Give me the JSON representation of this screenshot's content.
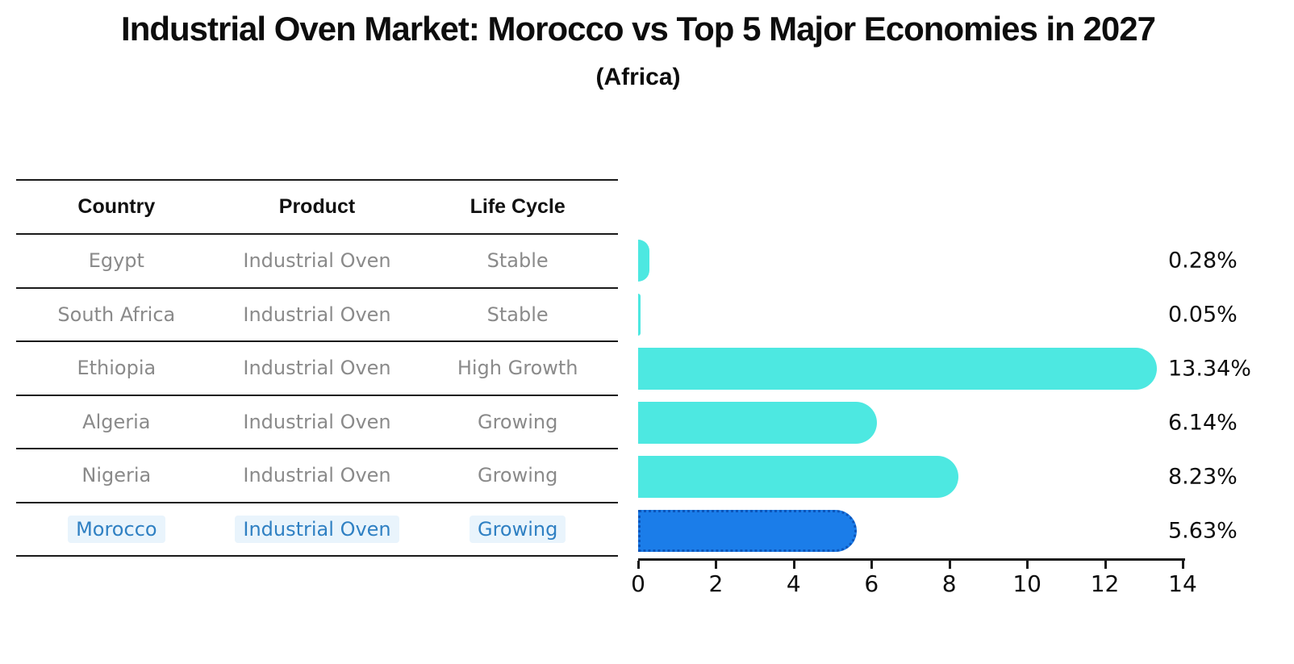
{
  "header": {
    "title": "Industrial Oven Market: Morocco vs Top 5 Major Economies in 2027",
    "subtitle": "(Africa)"
  },
  "table": {
    "headers": [
      "Country",
      "Product",
      "Life Cycle"
    ],
    "rows": [
      {
        "country": "Egypt",
        "product": "Industrial Oven",
        "life_cycle": "Stable",
        "highlight": false
      },
      {
        "country": "South Africa",
        "product": "Industrial Oven",
        "life_cycle": "Stable",
        "highlight": false
      },
      {
        "country": "Ethiopia",
        "product": "Industrial Oven",
        "life_cycle": "High Growth",
        "highlight": false
      },
      {
        "country": "Algeria",
        "product": "Industrial Oven",
        "life_cycle": "Growing",
        "highlight": false
      },
      {
        "country": "Nigeria",
        "product": "Industrial Oven",
        "life_cycle": "Growing",
        "highlight": false
      },
      {
        "country": "Morocco",
        "product": "Industrial Oven",
        "life_cycle": "Growing",
        "highlight": true
      }
    ]
  },
  "chart_data": {
    "type": "bar",
    "orientation": "horizontal",
    "title": "Industrial Oven Market: Morocco vs Top 5 Major Economies in 2027",
    "subtitle": "(Africa)",
    "categories": [
      "Egypt",
      "South Africa",
      "Ethiopia",
      "Algeria",
      "Nigeria",
      "Morocco"
    ],
    "values": [
      0.28,
      0.05,
      13.34,
      6.14,
      8.23,
      5.63
    ],
    "value_labels": [
      "0.28%",
      "0.05%",
      "13.34%",
      "6.14%",
      "8.23%",
      "5.63%"
    ],
    "xlim": [
      0,
      14
    ],
    "x_ticks": [
      0,
      2,
      4,
      6,
      8,
      10,
      12,
      14
    ],
    "highlight_index": 5,
    "grid": false,
    "legend": "none"
  },
  "colors": {
    "bar_color": "#4DE8E1",
    "highlight_bar_color": "#1B7DE9",
    "highlight_bar_border": "#0C55BA",
    "highlight_text": "#2F80C3",
    "highlight_text_bg": "#E9F4FC",
    "table_text": "#8A8A8A",
    "heading_text": "#111111",
    "axis_color": "#1A1A1A"
  }
}
